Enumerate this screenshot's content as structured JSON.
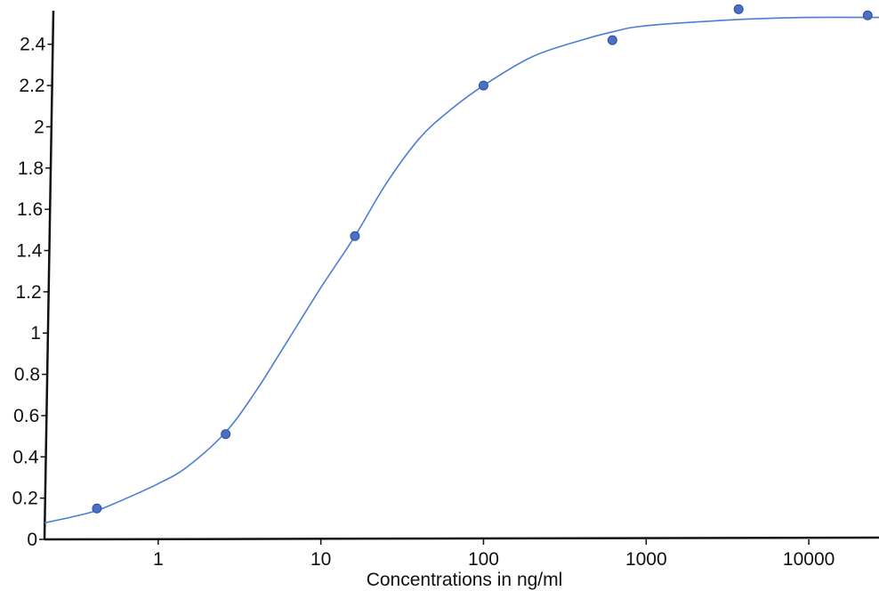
{
  "chart_data": {
    "type": "scatter",
    "title": "",
    "xlabel": "Concentrations in ng/ml",
    "ylabel": "",
    "x_scale": "log",
    "xlim": [
      0.2,
      27000
    ],
    "ylim": [
      0,
      2.58
    ],
    "grid": false,
    "legend": "none",
    "x_ticks": [
      1,
      10,
      100,
      1000,
      10000
    ],
    "x_tick_labels": [
      "1",
      "10",
      "100",
      "1000",
      "10000"
    ],
    "y_ticks": [
      0,
      0.2,
      0.4,
      0.6,
      0.8,
      1,
      1.2,
      1.4,
      1.6,
      1.8,
      2,
      2.2,
      2.4
    ],
    "y_tick_labels": [
      "0",
      "0.2",
      "0.4",
      "0.6",
      "0.8",
      "1",
      "1.2",
      "1.4",
      "1.6",
      "1.8",
      "2",
      "2.2",
      "2.4"
    ],
    "colors": {
      "curve": "#4a7fd4",
      "points": "#4a6fc4",
      "points_edge": "#2f4f9f",
      "axis": "#111111"
    },
    "series": [
      {
        "kind": "points",
        "x": [
          0.42,
          2.6,
          16.2,
          100,
          620,
          3700,
          23000
        ],
        "y": [
          0.15,
          0.51,
          1.47,
          2.2,
          2.42,
          2.57,
          2.54
        ]
      },
      {
        "kind": "fit-curve",
        "x": [
          0.2,
          0.3,
          0.42,
          0.6,
          1,
          1.5,
          2.6,
          4,
          6,
          10,
          16.2,
          25,
          40,
          60,
          100,
          200,
          400,
          620,
          1000,
          3700,
          10000,
          27000
        ],
        "y": [
          0.08,
          0.11,
          0.14,
          0.19,
          0.27,
          0.35,
          0.52,
          0.72,
          0.94,
          1.22,
          1.47,
          1.72,
          1.94,
          2.07,
          2.2,
          2.34,
          2.42,
          2.46,
          2.49,
          2.52,
          2.53,
          2.53
        ]
      }
    ]
  }
}
